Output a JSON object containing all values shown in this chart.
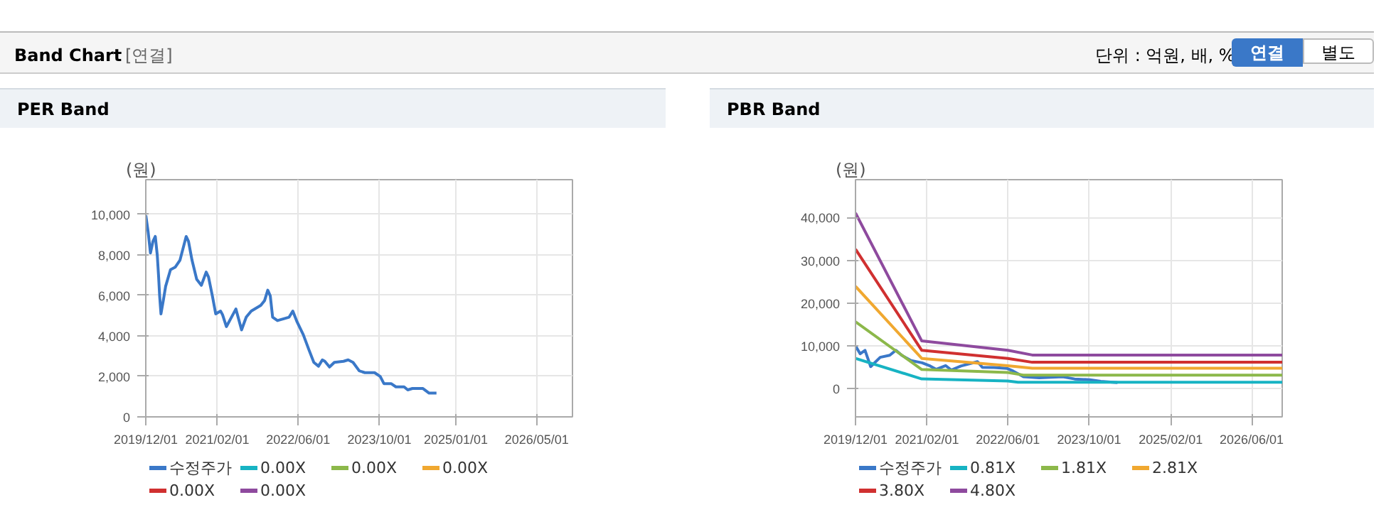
{
  "chart_data": [
    {
      "type": "other",
      "title": "Band Chart",
      "annotations": [
        "[연결]",
        "단위 : 억원, 배, %",
        "연결",
        "별도"
      ]
    },
    {
      "type": "line",
      "title": "PER Band",
      "ylabel": "(원)",
      "legend": "bottom",
      "grid": true,
      "xlim": [
        "2019-12-01",
        "2026-12-01"
      ],
      "ylim": [
        0,
        11700
      ],
      "xticks": [
        {
          "value": "2019-12-01",
          "label": "2019/12/01"
        },
        {
          "value": "2021-02-01",
          "label": "2021/02/01"
        },
        {
          "value": "2022-06-01",
          "label": "2022/06/01"
        },
        {
          "value": "2023-10-01",
          "label": "2023/10/01"
        },
        {
          "value": "2025-01-01",
          "label": "2025/01/01"
        },
        {
          "value": "2026-05-01",
          "label": "2026/05/01"
        }
      ],
      "yticks": [
        0,
        {
          "value": 2000,
          "label": "2,000"
        },
        {
          "value": 4000,
          "label": "4,000"
        },
        {
          "value": 6000,
          "label": "6,000"
        },
        {
          "value": 8000,
          "label": "8,000"
        },
        {
          "value": 10000,
          "label": "10,000"
        }
      ],
      "series": [
        {
          "name": "수정주가",
          "color": "#3a78c8",
          "x": [
            "2019-12-01",
            "2019-12-15",
            "2019-12-29",
            "2020-01-13",
            "2020-01-27",
            "2020-02-08",
            "2020-02-16",
            "2020-02-22",
            "2020-03-01",
            "2020-03-15",
            "2020-03-29",
            "2020-04-27",
            "2020-05-25",
            "2020-06-23",
            "2020-07-30",
            "2020-08-13",
            "2020-09-03",
            "2020-10-01",
            "2020-10-29",
            "2020-11-27",
            "2020-12-11",
            "2021-01-03",
            "2021-01-23",
            "2021-02-21",
            "2021-03-05",
            "2021-03-28",
            "2021-05-24",
            "2021-06-27",
            "2021-07-25",
            "2021-08-24",
            "2021-10-20",
            "2021-11-12",
            "2021-12-01",
            "2021-12-16",
            "2021-12-30",
            "2022-01-28",
            "2022-03-10",
            "2022-04-08",
            "2022-04-30",
            "2022-05-26",
            "2022-07-02",
            "2022-08-06",
            "2022-09-03",
            "2022-10-01",
            "2022-10-24",
            "2022-11-08",
            "2022-12-06",
            "2023-01-04",
            "2023-02-28",
            "2023-03-28",
            "2023-04-26",
            "2023-06-02",
            "2023-07-06",
            "2023-09-02",
            "2023-10-06",
            "2023-10-28",
            "2023-12-10",
            "2024-01-08",
            "2024-02-26",
            "2024-03-19",
            "2024-04-16",
            "2024-06-18",
            "2024-07-25",
            "2024-09-07"
          ],
          "values": [
            9950,
            9130,
            8080,
            8660,
            8900,
            7960,
            6900,
            5970,
            5080,
            5740,
            6440,
            7260,
            7380,
            7730,
            8900,
            8660,
            7730,
            6790,
            6490,
            7140,
            6900,
            5970,
            5080,
            5220,
            5040,
            4450,
            5320,
            4290,
            4920,
            5220,
            5500,
            5740,
            6250,
            5970,
            4920,
            4750,
            4850,
            4920,
            5220,
            4680,
            4050,
            3280,
            2690,
            2500,
            2810,
            2740,
            2460,
            2690,
            2740,
            2810,
            2690,
            2270,
            2180,
            2180,
            1990,
            1640,
            1640,
            1480,
            1480,
            1330,
            1400,
            1400,
            1170,
            1170
          ]
        },
        {
          "name": "0.00X",
          "color": "#17b3c3"
        },
        {
          "name": "0.00X",
          "color": "#8cb84a"
        },
        {
          "name": "0.00X",
          "color": "#f0a830"
        },
        {
          "name": "0.00X",
          "color": "#d03030"
        },
        {
          "name": "0.00X",
          "color": "#8e4a9e"
        }
      ]
    },
    {
      "type": "line",
      "title": "PBR Band",
      "ylabel": "(원)",
      "legend": "bottom",
      "grid": true,
      "xlim": [
        "2019-12-01",
        "2026-12-01"
      ],
      "ylim": [
        -6700,
        48900
      ],
      "xticks": [
        {
          "value": "2019-12-01",
          "label": "2019/12/01"
        },
        {
          "value": "2021-02-01",
          "label": "2021/02/01"
        },
        {
          "value": "2022-06-01",
          "label": "2022/06/01"
        },
        {
          "value": "2023-10-01",
          "label": "2023/10/01"
        },
        {
          "value": "2025-02-01",
          "label": "2025/02/01"
        },
        {
          "value": "2026-06-01",
          "label": "2026/06/01"
        }
      ],
      "yticks": [
        0,
        {
          "value": 10000,
          "label": "10,000"
        },
        {
          "value": 20000,
          "label": "20,000"
        },
        {
          "value": 30000,
          "label": "30,000"
        },
        {
          "value": 40000,
          "label": "40,000"
        }
      ],
      "series": [
        {
          "name": "수정주가",
          "color": "#3a78c8",
          "x": [
            "2019-12-01",
            "2019-12-29",
            "2020-01-27",
            "2020-03-01",
            "2020-04-27",
            "2020-06-23",
            "2020-07-30",
            "2020-09-03",
            "2020-10-29",
            "2021-01-03",
            "2021-02-21",
            "2021-03-28",
            "2021-05-24",
            "2021-06-27",
            "2021-08-24",
            "2021-12-01",
            "2021-12-30",
            "2022-03-10",
            "2022-05-26",
            "2022-07-02",
            "2022-09-03",
            "2022-12-06",
            "2023-04-26",
            "2023-07-06",
            "2023-10-06",
            "2023-12-10",
            "2024-03-19"
          ],
          "values": [
            9950,
            8080,
            8900,
            5080,
            7260,
            7730,
            8900,
            7730,
            6490,
            5970,
            5220,
            4450,
            5320,
            4290,
            5220,
            6250,
            4920,
            4850,
            4680,
            4050,
            2690,
            2460,
            2690,
            2180,
            1990,
            1640,
            1330
          ]
        },
        {
          "name": "0.81X",
          "color": "#17b3c3",
          "x": [
            "2019-12-01",
            "2021-01-01",
            "2022-06-01",
            "2022-08-01",
            "2026-12-01"
          ],
          "values": [
            7000,
            2200,
            1700,
            1400,
            1400
          ]
        },
        {
          "name": "1.81X",
          "color": "#8cb84a",
          "x": [
            "2019-12-01",
            "2021-01-01",
            "2022-06-01",
            "2022-09-01",
            "2026-12-01"
          ],
          "values": [
            15600,
            4400,
            3700,
            3100,
            3100
          ]
        },
        {
          "name": "2.81X",
          "color": "#f0a830",
          "x": [
            "2019-12-01",
            "2021-01-01",
            "2022-06-01",
            "2022-10-25",
            "2026-12-01"
          ],
          "values": [
            23900,
            7000,
            5300,
            4700,
            4700
          ]
        },
        {
          "name": "3.80X",
          "color": "#d03030",
          "x": [
            "2019-12-01",
            "2021-01-01",
            "2022-06-01",
            "2022-10-25",
            "2026-12-01"
          ],
          "values": [
            32600,
            8900,
            7000,
            6100,
            6100
          ]
        },
        {
          "name": "4.80X",
          "color": "#8e4a9e",
          "x": [
            "2019-12-01",
            "2021-01-01",
            "2022-06-01",
            "2022-10-25",
            "2026-12-01"
          ],
          "values": [
            41100,
            11100,
            8900,
            7800,
            7800
          ]
        }
      ]
    }
  ]
}
